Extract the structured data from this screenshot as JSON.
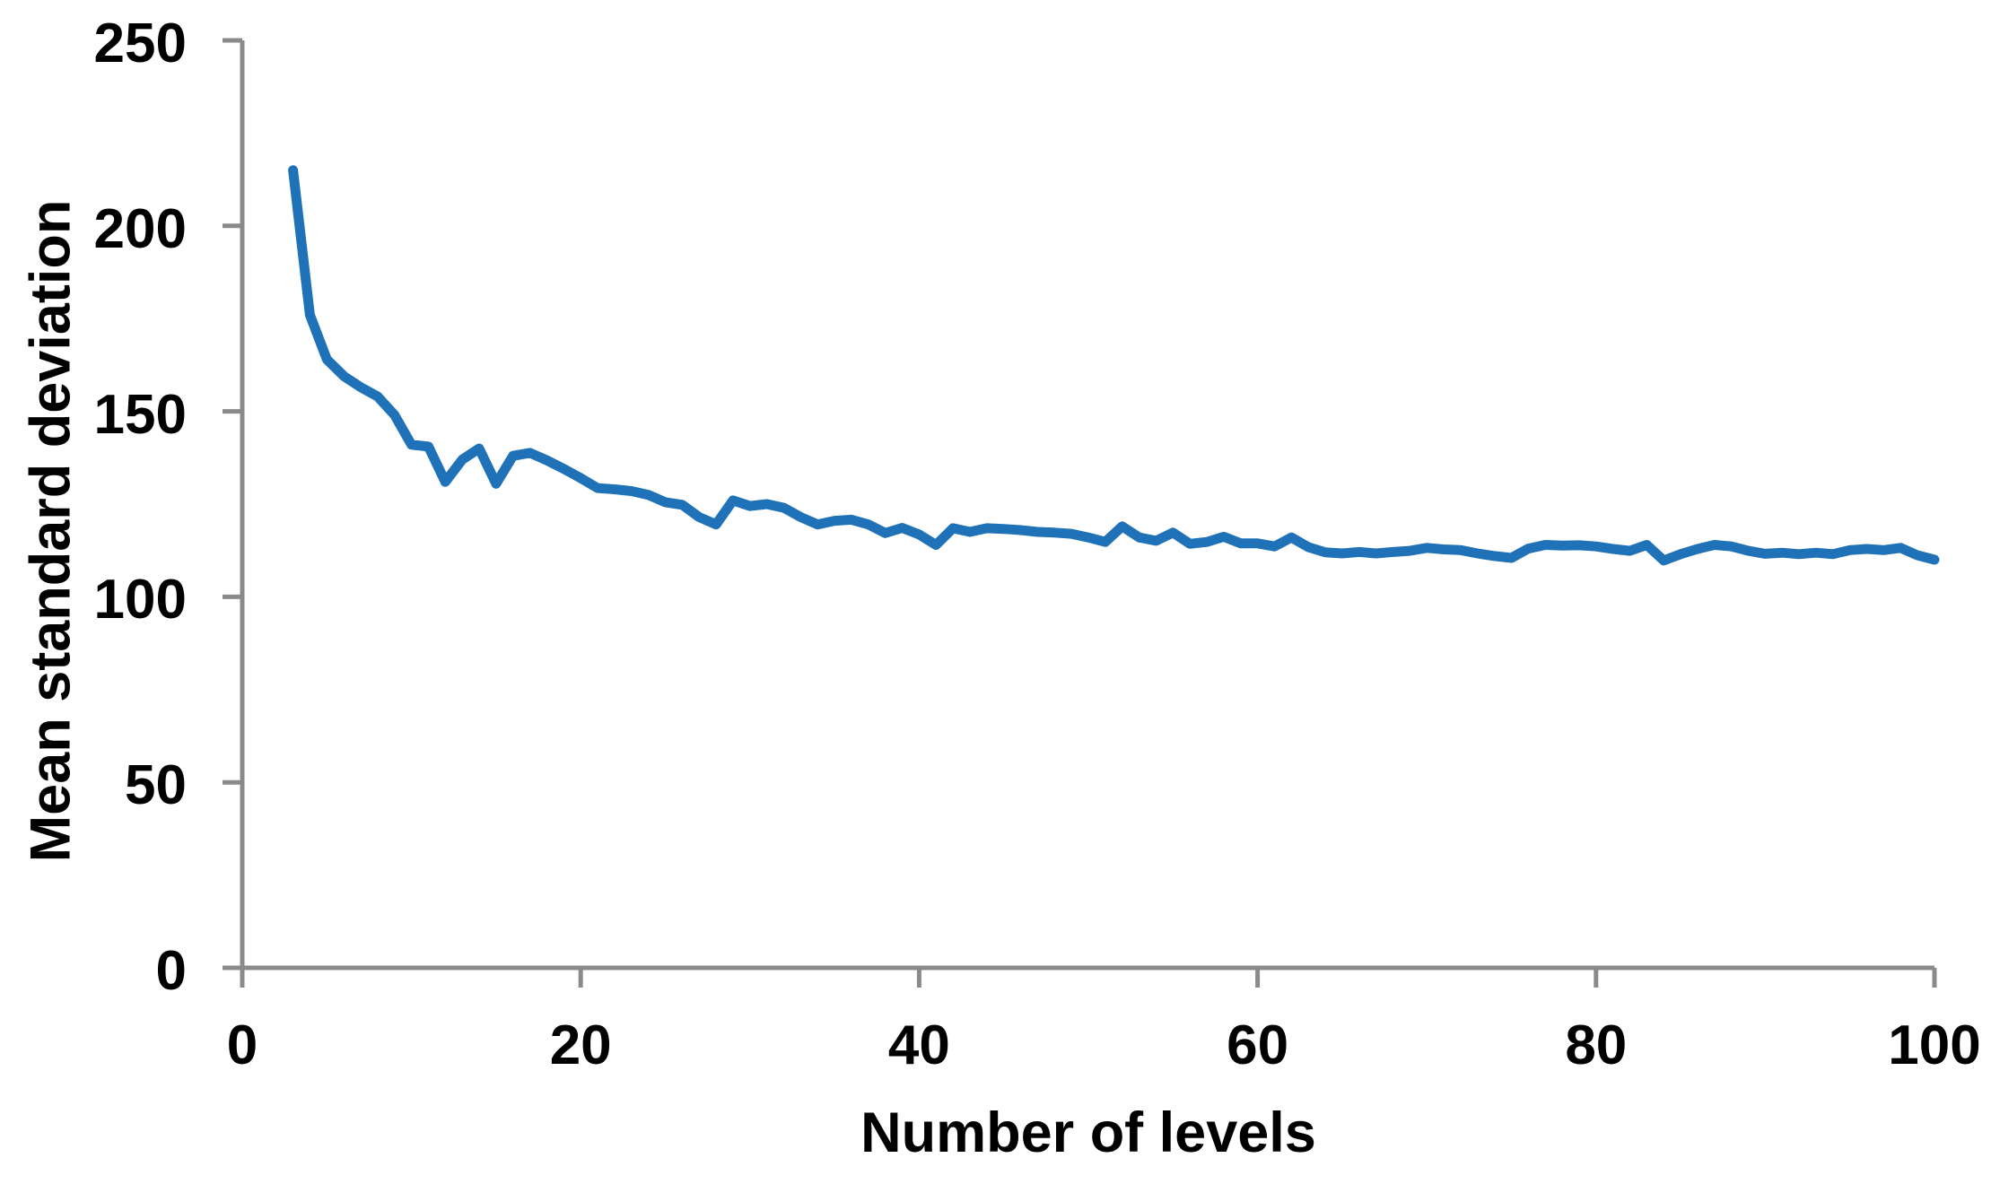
{
  "figure": {
    "background": "#ffffff",
    "text_color": "#000000",
    "axis_color": "#8a8a8a",
    "series_color": "#1f72b8"
  },
  "chart_data": {
    "type": "line",
    "title": "",
    "xlabel": "Number of levels",
    "ylabel": "Mean standard deviation",
    "xlim": [
      0,
      100
    ],
    "ylim": [
      0,
      250
    ],
    "x_ticks": [
      0,
      20,
      40,
      60,
      80,
      100
    ],
    "y_ticks": [
      0,
      50,
      100,
      150,
      200,
      250
    ],
    "grid": false,
    "legend": "none",
    "series": [
      {
        "name": "Mean standard deviation",
        "x": [
          3,
          4,
          5,
          6,
          7,
          8,
          9,
          10,
          11,
          12,
          13,
          14,
          15,
          16,
          17,
          18,
          19,
          20,
          21,
          22,
          23,
          24,
          25,
          26,
          27,
          28,
          29,
          30,
          31,
          32,
          33,
          34,
          35,
          36,
          37,
          38,
          39,
          40,
          41,
          42,
          43,
          44,
          45,
          46,
          47,
          48,
          49,
          50,
          51,
          52,
          53,
          54,
          55,
          56,
          57,
          58,
          59,
          60,
          61,
          62,
          63,
          64,
          65,
          66,
          67,
          68,
          69,
          70,
          71,
          72,
          73,
          74,
          75,
          76,
          77,
          78,
          79,
          80,
          81,
          82,
          83,
          84,
          85,
          86,
          87,
          88,
          89,
          90,
          91,
          92,
          93,
          94,
          95,
          96,
          97,
          98,
          99,
          100
        ],
        "y": [
          215,
          176,
          164,
          159.5,
          156.5,
          154,
          149,
          141,
          140.5,
          131,
          137,
          140,
          130.5,
          138,
          138.8,
          136.8,
          134.5,
          132,
          129.3,
          129,
          128.5,
          127.5,
          125.5,
          124.8,
          121.5,
          119.5,
          126,
          124.5,
          125,
          124,
          121.5,
          119.5,
          120.5,
          120.8,
          119.5,
          117.2,
          118.6,
          116.8,
          114,
          118.5,
          117.5,
          118.5,
          118.3,
          118,
          117.5,
          117.3,
          117,
          116,
          114.8,
          119,
          116,
          115.1,
          117.3,
          114.3,
          114.8,
          116.2,
          114.4,
          114.4,
          113.6,
          116,
          113.4,
          112,
          111.7,
          112.1,
          111.7,
          112.1,
          112.4,
          113.2,
          112.8,
          112.6,
          111.7,
          111,
          110.5,
          113,
          114,
          113.8,
          113.9,
          113.6,
          112.9,
          112.4,
          114,
          109.8,
          111.5,
          112.9,
          114,
          113.6,
          112.4,
          111.6,
          111.9,
          111.5,
          111.9,
          111.5,
          112.6,
          112.9,
          112.6,
          113.2,
          111.2,
          110
        ]
      }
    ]
  }
}
